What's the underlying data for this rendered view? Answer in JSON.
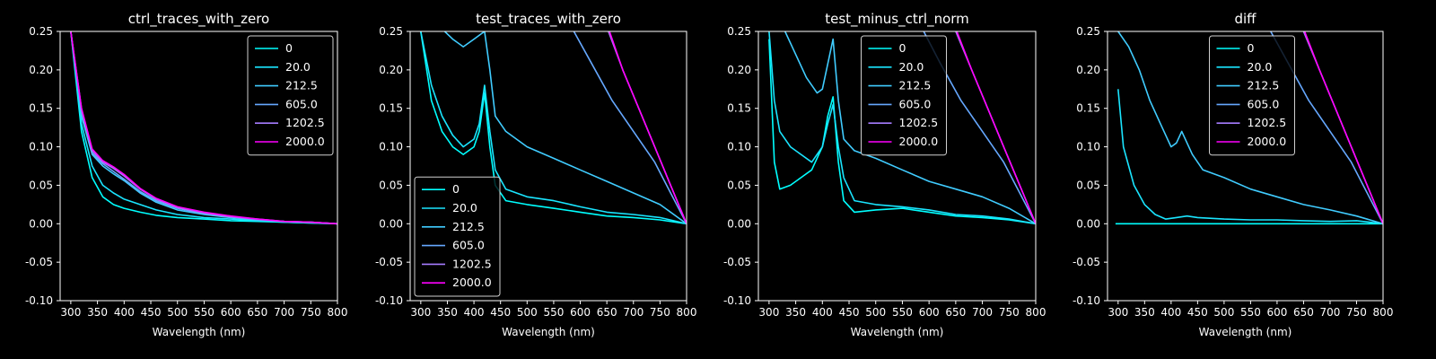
{
  "figure": {
    "background": "#000000",
    "foreground": "#ffffff"
  },
  "chart_data": [
    {
      "type": "line",
      "title": "ctrl_traces_with_zero",
      "xlabel": "Wavelength (nm)",
      "ylabel": "",
      "xlim": [
        280,
        800
      ],
      "ylim": [
        -0.1,
        0.25
      ],
      "xticks": [
        300,
        350,
        400,
        450,
        500,
        550,
        600,
        650,
        700,
        750,
        800
      ],
      "yticks": [
        -0.1,
        -0.05,
        0.0,
        0.05,
        0.1,
        0.15,
        0.2,
        0.25
      ],
      "grid": false,
      "legend": {
        "placement": "top-right"
      },
      "series": [
        {
          "name": "0",
          "color": "#00ffff",
          "x": [
            300,
            320,
            340,
            360,
            380,
            400,
            430,
            460,
            500,
            550,
            600,
            650,
            700,
            750,
            800
          ],
          "y": [
            0.25,
            0.12,
            0.06,
            0.035,
            0.025,
            0.02,
            0.015,
            0.011,
            0.008,
            0.006,
            0.004,
            0.003,
            0.002,
            0.001,
            0.0
          ]
        },
        {
          "name": "20.0",
          "color": "#1ae5ff",
          "x": [
            300,
            320,
            340,
            360,
            380,
            400,
            430,
            460,
            500,
            550,
            600,
            650,
            700,
            750,
            800
          ],
          "y": [
            0.25,
            0.13,
            0.075,
            0.05,
            0.04,
            0.032,
            0.025,
            0.018,
            0.012,
            0.008,
            0.006,
            0.004,
            0.002,
            0.001,
            0.0
          ]
        },
        {
          "name": "212.5",
          "color": "#40ccff",
          "x": [
            300,
            320,
            340,
            360,
            380,
            400,
            430,
            460,
            500,
            550,
            600,
            650,
            700,
            750,
            800
          ],
          "y": [
            0.25,
            0.14,
            0.09,
            0.075,
            0.065,
            0.056,
            0.04,
            0.028,
            0.018,
            0.012,
            0.008,
            0.005,
            0.003,
            0.002,
            0.0
          ]
        },
        {
          "name": "605.0",
          "color": "#66a8ff",
          "x": [
            300,
            320,
            340,
            360,
            380,
            400,
            430,
            460,
            500,
            550,
            600,
            650,
            700,
            750,
            800
          ],
          "y": [
            0.25,
            0.145,
            0.092,
            0.078,
            0.068,
            0.058,
            0.042,
            0.03,
            0.02,
            0.013,
            0.009,
            0.005,
            0.003,
            0.002,
            0.0
          ]
        },
        {
          "name": "1202.5",
          "color": "#a67cff",
          "x": [
            300,
            320,
            340,
            360,
            380,
            400,
            430,
            460,
            500,
            550,
            600,
            650,
            700,
            750,
            800
          ],
          "y": [
            0.25,
            0.15,
            0.095,
            0.08,
            0.072,
            0.062,
            0.045,
            0.032,
            0.021,
            0.014,
            0.009,
            0.006,
            0.003,
            0.002,
            0.0
          ]
        },
        {
          "name": "2000.0",
          "color": "#ff00ff",
          "x": [
            300,
            320,
            340,
            360,
            380,
            400,
            430,
            460,
            500,
            550,
            600,
            650,
            700,
            750,
            800
          ],
          "y": [
            0.25,
            0.15,
            0.097,
            0.082,
            0.074,
            0.064,
            0.046,
            0.033,
            0.022,
            0.015,
            0.01,
            0.006,
            0.003,
            0.002,
            0.0
          ]
        }
      ]
    },
    {
      "type": "line",
      "title": "test_traces_with_zero",
      "xlabel": "Wavelength (nm)",
      "ylabel": "",
      "xlim": [
        280,
        800
      ],
      "ylim": [
        -0.1,
        0.25
      ],
      "xticks": [
        300,
        350,
        400,
        450,
        500,
        550,
        600,
        650,
        700,
        750,
        800
      ],
      "yticks": [
        -0.1,
        -0.05,
        0.0,
        0.05,
        0.1,
        0.15,
        0.2,
        0.25
      ],
      "grid": false,
      "legend": {
        "placement": "bottom-left"
      },
      "series": [
        {
          "name": "0",
          "color": "#00ffff",
          "x": [
            300,
            320,
            340,
            360,
            380,
            400,
            410,
            420,
            430,
            440,
            460,
            500,
            550,
            600,
            650,
            700,
            750,
            800
          ],
          "y": [
            0.25,
            0.16,
            0.12,
            0.1,
            0.09,
            0.1,
            0.12,
            0.17,
            0.1,
            0.05,
            0.03,
            0.025,
            0.02,
            0.015,
            0.01,
            0.008,
            0.005,
            0.0
          ]
        },
        {
          "name": "20.0",
          "color": "#1ae5ff",
          "x": [
            300,
            320,
            340,
            360,
            380,
            400,
            410,
            420,
            430,
            440,
            460,
            500,
            550,
            600,
            650,
            700,
            750,
            800
          ],
          "y": [
            0.25,
            0.18,
            0.14,
            0.115,
            0.1,
            0.11,
            0.13,
            0.18,
            0.12,
            0.07,
            0.045,
            0.035,
            0.03,
            0.022,
            0.015,
            0.012,
            0.008,
            0.0
          ]
        },
        {
          "name": "212.5",
          "color": "#40ccff",
          "x": [
            345,
            360,
            380,
            400,
            420,
            430,
            440,
            460,
            500,
            550,
            600,
            650,
            700,
            750,
            800
          ],
          "y": [
            0.25,
            0.24,
            0.23,
            0.24,
            0.25,
            0.2,
            0.14,
            0.12,
            0.1,
            0.085,
            0.07,
            0.055,
            0.04,
            0.025,
            0.0
          ]
        },
        {
          "name": "605.0",
          "color": "#66a8ff",
          "x": [
            588,
            620,
            660,
            700,
            740,
            770,
            800
          ],
          "y": [
            0.25,
            0.21,
            0.16,
            0.12,
            0.08,
            0.04,
            0.0
          ]
        },
        {
          "name": "1202.5",
          "color": "#a67cff",
          "x": [
            653,
            680,
            710,
            740,
            770,
            800
          ],
          "y": [
            0.25,
            0.2,
            0.15,
            0.1,
            0.05,
            0.0
          ]
        },
        {
          "name": "2000.0",
          "color": "#ff00ff",
          "x": [
            655,
            680,
            710,
            740,
            770,
            800
          ],
          "y": [
            0.25,
            0.2,
            0.15,
            0.1,
            0.05,
            0.0
          ]
        }
      ]
    },
    {
      "type": "line",
      "title": "test_minus_ctrl_norm",
      "xlabel": "Wavelength (nm)",
      "ylabel": "",
      "xlim": [
        280,
        800
      ],
      "ylim": [
        -0.1,
        0.25
      ],
      "xticks": [
        300,
        350,
        400,
        450,
        500,
        550,
        600,
        650,
        700,
        750,
        800
      ],
      "yticks": [
        -0.1,
        -0.05,
        0.0,
        0.05,
        0.1,
        0.15,
        0.2,
        0.25
      ],
      "grid": false,
      "legend": {
        "placement": "top-center"
      },
      "series": [
        {
          "name": "0",
          "color": "#00ffff",
          "x": [
            300,
            310,
            320,
            340,
            360,
            380,
            400,
            410,
            420,
            430,
            440,
            460,
            500,
            550,
            600,
            650,
            700,
            750,
            800
          ],
          "y": [
            0.24,
            0.08,
            0.045,
            0.05,
            0.06,
            0.07,
            0.1,
            0.14,
            0.165,
            0.08,
            0.03,
            0.015,
            0.018,
            0.02,
            0.015,
            0.01,
            0.008,
            0.005,
            0.0
          ]
        },
        {
          "name": "20.0",
          "color": "#1ae5ff",
          "x": [
            300,
            310,
            320,
            340,
            360,
            380,
            400,
            410,
            420,
            430,
            440,
            460,
            500,
            550,
            600,
            650,
            700,
            750,
            800
          ],
          "y": [
            0.25,
            0.16,
            0.12,
            0.1,
            0.09,
            0.08,
            0.1,
            0.13,
            0.155,
            0.1,
            0.06,
            0.03,
            0.025,
            0.022,
            0.018,
            0.012,
            0.01,
            0.006,
            0.0
          ]
        },
        {
          "name": "212.5",
          "color": "#40ccff",
          "x": [
            330,
            350,
            370,
            390,
            400,
            420,
            430,
            440,
            460,
            500,
            550,
            600,
            650,
            700,
            750,
            800
          ],
          "y": [
            0.25,
            0.22,
            0.19,
            0.17,
            0.175,
            0.24,
            0.16,
            0.11,
            0.095,
            0.085,
            0.07,
            0.055,
            0.045,
            0.035,
            0.02,
            0.0
          ]
        },
        {
          "name": "605.0",
          "color": "#66a8ff",
          "x": [
            590,
            620,
            660,
            700,
            740,
            770,
            800
          ],
          "y": [
            0.25,
            0.21,
            0.16,
            0.12,
            0.08,
            0.04,
            0.0
          ]
        },
        {
          "name": "1202.5",
          "color": "#a67cff",
          "x": [
            650,
            680,
            710,
            740,
            770,
            800
          ],
          "y": [
            0.25,
            0.2,
            0.15,
            0.1,
            0.05,
            0.0
          ]
        },
        {
          "name": "2000.0",
          "color": "#ff00ff",
          "x": [
            652,
            680,
            710,
            740,
            770,
            800
          ],
          "y": [
            0.25,
            0.2,
            0.15,
            0.1,
            0.05,
            0.0
          ]
        }
      ]
    },
    {
      "type": "line",
      "title": "diff",
      "xlabel": "Wavelength (nm)",
      "ylabel": "",
      "xlim": [
        280,
        800
      ],
      "ylim": [
        -0.1,
        0.25
      ],
      "xticks": [
        300,
        350,
        400,
        450,
        500,
        550,
        600,
        650,
        700,
        750,
        800
      ],
      "yticks": [
        -0.1,
        -0.05,
        0.0,
        0.05,
        0.1,
        0.15,
        0.2,
        0.25
      ],
      "grid": false,
      "legend": {
        "placement": "top-center"
      },
      "series": [
        {
          "name": "0",
          "color": "#00ffff",
          "x": [
            295,
            800
          ],
          "y": [
            0.0,
            0.0
          ]
        },
        {
          "name": "20.0",
          "color": "#1ae5ff",
          "x": [
            300,
            310,
            330,
            350,
            370,
            390,
            410,
            430,
            450,
            500,
            550,
            600,
            650,
            700,
            750,
            800
          ],
          "y": [
            0.175,
            0.1,
            0.05,
            0.025,
            0.012,
            0.006,
            0.008,
            0.01,
            0.008,
            0.006,
            0.005,
            0.005,
            0.004,
            0.003,
            0.004,
            0.0
          ]
        },
        {
          "name": "212.5",
          "color": "#40ccff",
          "x": [
            300,
            320,
            340,
            360,
            380,
            400,
            410,
            420,
            440,
            460,
            500,
            550,
            600,
            650,
            700,
            750,
            800
          ],
          "y": [
            0.25,
            0.23,
            0.2,
            0.16,
            0.13,
            0.1,
            0.105,
            0.12,
            0.09,
            0.07,
            0.06,
            0.045,
            0.035,
            0.025,
            0.018,
            0.01,
            0.0
          ]
        },
        {
          "name": "605.0",
          "color": "#66a8ff",
          "x": [
            588,
            620,
            660,
            700,
            740,
            770,
            800
          ],
          "y": [
            0.25,
            0.21,
            0.16,
            0.12,
            0.08,
            0.04,
            0.0
          ]
        },
        {
          "name": "1202.5",
          "color": "#a67cff",
          "x": [
            650,
            680,
            710,
            740,
            770,
            800
          ],
          "y": [
            0.25,
            0.2,
            0.15,
            0.1,
            0.05,
            0.0
          ]
        },
        {
          "name": "2000.0",
          "color": "#ff00ff",
          "x": [
            652,
            680,
            710,
            740,
            770,
            800
          ],
          "y": [
            0.25,
            0.2,
            0.15,
            0.1,
            0.05,
            0.0
          ]
        }
      ]
    }
  ]
}
